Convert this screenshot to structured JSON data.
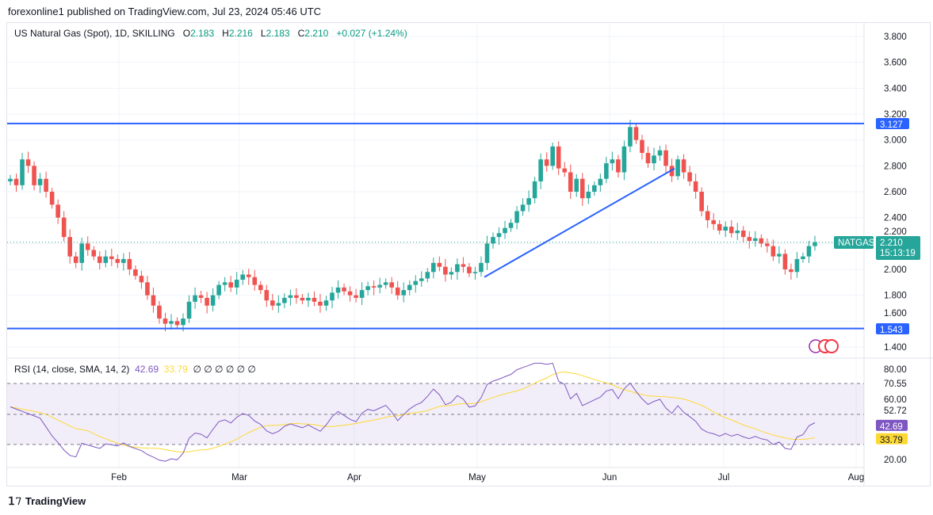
{
  "header": {
    "published": "forexonline1 published on TradingView.com, Jul 23, 2024 05:46 UTC"
  },
  "legend": {
    "symbol": "US Natural Gas (Spot), 1D, SKILLING",
    "o_label": "O",
    "o": "2.183",
    "h_label": "H",
    "h": "2.216",
    "l_label": "L",
    "l": "2.183",
    "c_label": "C",
    "c": "2.210",
    "change": "+0.027 (+1.24%)"
  },
  "rsi_legend": {
    "title": "RSI (14, close, SMA, 14, 2)",
    "rsi": "42.69",
    "sma": "33.79",
    "empties": "∅  ∅  ∅  ∅  ∅  ∅"
  },
  "badges": {
    "symbol": "NATGAS",
    "price": "2.210",
    "countdown": "15:13:19",
    "resistance": "3.127",
    "support": "1.543",
    "rsi": "42.69",
    "rsi_sma": "33.79"
  },
  "colors": {
    "up": "#26a69a",
    "down": "#ef5350",
    "line": "#2962ff",
    "rsi": "#7e57c2",
    "sma": "#fdd835"
  },
  "brand": "TradingView",
  "chart_data": [
    {
      "type": "candlestick",
      "ylim": [
        1.35,
        3.9
      ],
      "yticks": [
        "3.800",
        "3.600",
        "3.400",
        "3.200",
        "3.000",
        "2.800",
        "2.600",
        "2.400",
        "2.200",
        "2.000",
        "1.800",
        "1.600",
        "1.400"
      ],
      "xticks": [
        "Feb",
        "Mar",
        "Apr",
        "May",
        "Jun",
        "Jul",
        "Aug"
      ],
      "first_open": 2.68,
      "closes": [
        2.7,
        2.65,
        2.85,
        2.8,
        2.65,
        2.7,
        2.6,
        2.5,
        2.4,
        2.25,
        2.1,
        2.05,
        2.2,
        2.15,
        2.1,
        2.05,
        2.1,
        2.08,
        2.05,
        2.08,
        2.0,
        1.95,
        1.9,
        1.8,
        1.72,
        1.62,
        1.58,
        1.6,
        1.57,
        1.62,
        1.75,
        1.8,
        1.78,
        1.72,
        1.8,
        1.88,
        1.9,
        1.86,
        1.92,
        1.96,
        1.94,
        1.88,
        1.84,
        1.76,
        1.72,
        1.74,
        1.78,
        1.8,
        1.78,
        1.76,
        1.78,
        1.75,
        1.72,
        1.76,
        1.82,
        1.86,
        1.83,
        1.8,
        1.78,
        1.84,
        1.87,
        1.86,
        1.88,
        1.9,
        1.86,
        1.8,
        1.84,
        1.88,
        1.91,
        1.93,
        1.98,
        2.05,
        2.02,
        1.96,
        1.98,
        2.04,
        2.02,
        1.97,
        1.98,
        2.05,
        2.2,
        2.25,
        2.28,
        2.32,
        2.36,
        2.45,
        2.5,
        2.55,
        2.68,
        2.85,
        2.8,
        2.95,
        2.78,
        2.75,
        2.6,
        2.7,
        2.55,
        2.6,
        2.65,
        2.7,
        2.82,
        2.85,
        2.75,
        2.95,
        3.1,
        3.0,
        2.9,
        2.82,
        2.88,
        2.92,
        2.8,
        2.72,
        2.85,
        2.75,
        2.68,
        2.6,
        2.45,
        2.38,
        2.35,
        2.3,
        2.33,
        2.28,
        2.3,
        2.25,
        2.22,
        2.24,
        2.2,
        2.18,
        2.1,
        2.12,
        2.0,
        1.98,
        2.08,
        2.1,
        2.18,
        2.21
      ],
      "horizontal_lines": [
        3.127,
        1.543
      ],
      "trendlines": [
        {
          "from": {
            "date": "May 1",
            "price": 1.94
          },
          "to": {
            "date": "Jun 19",
            "price": 2.78
          }
        }
      ],
      "last_price": 2.21
    },
    {
      "type": "line",
      "title": "RSI (14, close, SMA, 14, 2)",
      "ylim": [
        15,
        85
      ],
      "yticks": [
        "80.00",
        "70.55",
        "60.00",
        "52.72",
        "42.69",
        "33.79",
        "20.00"
      ],
      "bands": [
        70,
        30
      ],
      "middle": 50,
      "series": [
        {
          "name": "RSI",
          "last": 42.69
        },
        {
          "name": "SMA",
          "last": 33.79
        }
      ]
    }
  ]
}
